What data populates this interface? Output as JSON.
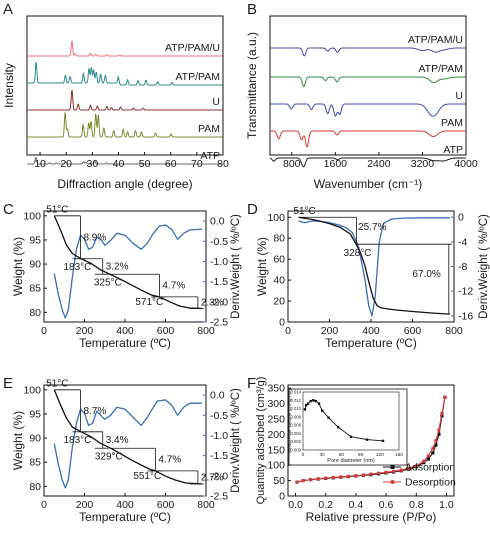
{
  "panels": {
    "A": "A",
    "B": "B",
    "C": "C",
    "D": "D",
    "E": "E",
    "F": "F"
  },
  "chart_data": [
    {
      "panel": "A",
      "type": "line",
      "xlabel": "Diffraction angle (degree)",
      "ylabel": "Intensity",
      "xlim": [
        5,
        80
      ],
      "xticks": [
        "10",
        "20",
        "30",
        "40",
        "50",
        "60",
        "70",
        "80"
      ],
      "series": [
        {
          "name": "ATP/PAM/U",
          "color": "#e8707f",
          "peaks": [
            {
              "x": 22.2,
              "h": 0.85
            },
            {
              "x": 23.5,
              "h": 0.12
            },
            {
              "x": 29.2,
              "h": 0.15
            },
            {
              "x": 31.3,
              "h": 0.1
            },
            {
              "x": 35.6,
              "h": 0.08
            },
            {
              "x": 40.5,
              "h": 0.06
            }
          ]
        },
        {
          "name": "ATP/PAM",
          "color": "#2a8a8a",
          "peaks": [
            {
              "x": 8.5,
              "h": 0.95
            },
            {
              "x": 19.7,
              "h": 0.35
            },
            {
              "x": 21.5,
              "h": 0.3
            },
            {
              "x": 26.6,
              "h": 0.45
            },
            {
              "x": 28.7,
              "h": 0.65
            },
            {
              "x": 29.6,
              "h": 0.7
            },
            {
              "x": 30.5,
              "h": 0.6
            },
            {
              "x": 31.5,
              "h": 0.5
            },
            {
              "x": 33.2,
              "h": 0.4
            },
            {
              "x": 35.0,
              "h": 0.35
            },
            {
              "x": 40.0,
              "h": 0.3
            },
            {
              "x": 43.5,
              "h": 0.25
            },
            {
              "x": 47.5,
              "h": 0.2
            },
            {
              "x": 50.5,
              "h": 0.22
            },
            {
              "x": 55.0,
              "h": 0.15
            },
            {
              "x": 60.5,
              "h": 0.12
            }
          ]
        },
        {
          "name": "U",
          "color": "#8b2f2f",
          "peaks": [
            {
              "x": 22.2,
              "h": 1.0
            },
            {
              "x": 24.6,
              "h": 0.3
            },
            {
              "x": 29.3,
              "h": 0.25
            },
            {
              "x": 31.9,
              "h": 0.2
            },
            {
              "x": 35.6,
              "h": 0.18
            },
            {
              "x": 37.3,
              "h": 0.12
            },
            {
              "x": 40.8,
              "h": 0.15
            },
            {
              "x": 45.7,
              "h": 0.1
            },
            {
              "x": 49.5,
              "h": 0.1
            }
          ]
        },
        {
          "name": "PAM",
          "color": "#7d8a2e",
          "peaks": [
            {
              "x": 19.6,
              "h": 0.95
            },
            {
              "x": 20.5,
              "h": 0.3
            },
            {
              "x": 26.5,
              "h": 0.5
            },
            {
              "x": 28.6,
              "h": 0.55
            },
            {
              "x": 29.5,
              "h": 0.6
            },
            {
              "x": 31.3,
              "h": 0.9
            },
            {
              "x": 32.3,
              "h": 0.85
            },
            {
              "x": 34.4,
              "h": 0.35
            },
            {
              "x": 38.2,
              "h": 0.25
            },
            {
              "x": 41.8,
              "h": 0.3
            },
            {
              "x": 43.5,
              "h": 0.2
            },
            {
              "x": 46.5,
              "h": 0.25
            },
            {
              "x": 48.8,
              "h": 0.2
            },
            {
              "x": 54.2,
              "h": 0.15
            },
            {
              "x": 60.1,
              "h": 0.12
            }
          ]
        },
        {
          "name": "ATP",
          "color": "#6e6e6e",
          "peaks": [
            {
              "x": 8.4,
              "h": 0.55
            },
            {
              "x": 13.7,
              "h": 0.1
            },
            {
              "x": 16.3,
              "h": 0.1
            },
            {
              "x": 19.8,
              "h": 0.18
            },
            {
              "x": 26.6,
              "h": 0.2
            },
            {
              "x": 27.6,
              "h": 0.15
            },
            {
              "x": 30.9,
              "h": 0.25
            },
            {
              "x": 35.4,
              "h": 0.1
            }
          ]
        }
      ]
    },
    {
      "panel": "B",
      "type": "line",
      "xlabel": "Wavenumber (cm⁻¹)",
      "ylabel": "Transmittance (a.u.)",
      "xlim": [
        400,
        4000
      ],
      "xticks": [
        "800",
        "1600",
        "2400",
        "3200",
        "4000"
      ],
      "series": [
        {
          "name": "ATP/PAM/U",
          "color": "#5b3fa0",
          "dips": [
            {
              "x": 1030,
              "d": 0.8
            },
            {
              "x": 1460,
              "d": 0.3
            },
            {
              "x": 1640,
              "d": 0.45
            },
            {
              "x": 3200,
              "d": 0.25
            },
            {
              "x": 3440,
              "d": 0.4
            },
            {
              "x": 3610,
              "d": 0.15
            }
          ]
        },
        {
          "name": "ATP/PAM",
          "color": "#2f8a3e",
          "dips": [
            {
              "x": 1020,
              "d": 0.8
            },
            {
              "x": 1420,
              "d": 0.3
            },
            {
              "x": 1630,
              "d": 0.4
            },
            {
              "x": 3410,
              "d": 0.45
            },
            {
              "x": 3610,
              "d": 0.15
            }
          ]
        },
        {
          "name": "U",
          "color": "#3d4fb0",
          "dips": [
            {
              "x": 790,
              "d": 0.35
            },
            {
              "x": 1160,
              "d": 0.4
            },
            {
              "x": 1460,
              "d": 0.7
            },
            {
              "x": 1600,
              "d": 0.85
            },
            {
              "x": 1680,
              "d": 0.75
            },
            {
              "x": 3340,
              "d": 0.5
            },
            {
              "x": 3440,
              "d": 0.6
            }
          ]
        },
        {
          "name": "PAM",
          "color": "#d63a3a",
          "dips": [
            {
              "x": 560,
              "d": 0.5
            },
            {
              "x": 980,
              "d": 0.55
            },
            {
              "x": 1080,
              "d": 1.0
            },
            {
              "x": 1630,
              "d": 0.25
            },
            {
              "x": 3400,
              "d": 0.35
            }
          ]
        },
        {
          "name": "ATP",
          "color": "#1a1a1a",
          "dips": [
            {
              "x": 470,
              "d": 0.4
            },
            {
              "x": 990,
              "d": 0.6
            },
            {
              "x": 1030,
              "d": 0.8
            },
            {
              "x": 1640,
              "d": 0.25
            },
            {
              "x": 3400,
              "d": 0.3
            },
            {
              "x": 3550,
              "d": 0.2
            },
            {
              "x": 3615,
              "d": 0.2
            }
          ]
        }
      ]
    },
    {
      "panel": "C",
      "type": "line",
      "xlabel": "Temperature (ºC)",
      "ylabel": "Weight (%)",
      "y2label": "Deriv.Weight ( %/ºC)",
      "xlim": [
        0,
        800
      ],
      "ylim": [
        78,
        101
      ],
      "y2lim": [
        -2.5,
        0.25
      ],
      "xticks": [
        "0",
        "200",
        "400",
        "600",
        "800"
      ],
      "yticks": [
        "80",
        "85",
        "90",
        "95",
        "100"
      ],
      "y2ticks": [
        "0.0",
        "-0.5",
        "-1.0",
        "-1.5",
        "-2.0",
        "-2.5"
      ],
      "series": [
        {
          "name": "Weight",
          "color": "#111111",
          "x": [
            51,
            80,
            110,
            140,
            183,
            230,
            280,
            325,
            380,
            430,
            480,
            530,
            571,
            620,
            670,
            720,
            780
          ],
          "y": [
            100,
            97.2,
            94.0,
            92.2,
            91.1,
            90.2,
            88.8,
            87.9,
            86.8,
            85.7,
            84.6,
            83.6,
            83.2,
            82.2,
            81.3,
            80.9,
            80.8
          ]
        },
        {
          "name": "Deriv.Weight",
          "color": "#3a6fb5",
          "axis": "y2",
          "x": [
            51,
            70,
            90,
            105,
            120,
            140,
            160,
            180,
            200,
            220,
            240,
            260,
            280,
            300,
            325,
            360,
            400,
            440,
            480,
            510,
            540,
            571,
            600,
            630,
            660,
            690,
            720,
            780
          ],
          "y": [
            -1.3,
            -1.8,
            -2.2,
            -2.4,
            -2.2,
            -1.4,
            -0.7,
            -0.35,
            -0.45,
            -0.7,
            -0.65,
            -0.4,
            -0.45,
            -0.6,
            -0.5,
            -0.3,
            -0.35,
            -0.55,
            -0.7,
            -0.55,
            -0.3,
            -0.12,
            -0.1,
            -0.2,
            -0.45,
            -0.3,
            -0.22,
            -0.2
          ]
        }
      ],
      "annotations": [
        "51°C",
        "8.9%",
        "183°C",
        "3.2%",
        "325°C",
        "4.7%",
        "571°C",
        "2.3%"
      ]
    },
    {
      "panel": "D",
      "type": "line",
      "xlabel": "Temperature (ºC)",
      "ylabel": "Weight (%)",
      "y2label": "Deriv.Weight ( %/ºC)",
      "xlim": [
        0,
        800
      ],
      "ylim": [
        0,
        106
      ],
      "y2lim": [
        -17,
        1
      ],
      "xticks": [
        "0",
        "200",
        "400",
        "600",
        "800"
      ],
      "yticks": [
        "0",
        "20",
        "40",
        "60",
        "80",
        "100"
      ],
      "y2ticks": [
        "0",
        "-4",
        "-8",
        "-12",
        "-16"
      ],
      "series": [
        {
          "name": "Weight",
          "color": "#111111",
          "x": [
            51,
            100,
            150,
            200,
            250,
            300,
            328,
            350,
            370,
            390,
            410,
            430,
            450,
            480,
            520,
            600,
            700,
            780
          ],
          "y": [
            100,
            98.5,
            96.5,
            94.0,
            90.5,
            84.0,
            74.3,
            66.0,
            54.0,
            38.0,
            23.0,
            15.5,
            13.5,
            12.5,
            11.5,
            10.0,
            8.5,
            7.5
          ]
        },
        {
          "name": "Deriv.Weight",
          "color": "#3a6fb5",
          "axis": "y2",
          "x": [
            51,
            80,
            120,
            160,
            200,
            240,
            280,
            310,
            340,
            370,
            390,
            405,
            420,
            440,
            460,
            500,
            560,
            650,
            780
          ],
          "y": [
            -0.6,
            -0.9,
            -0.6,
            -0.7,
            -0.9,
            -1.2,
            -1.7,
            -2.5,
            -4.8,
            -10.0,
            -14.5,
            -16.0,
            -13.0,
            -4.0,
            -1.0,
            -0.3,
            -0.15,
            -0.1,
            -0.1
          ]
        }
      ],
      "annotations": [
        "51°C",
        "25.7%",
        "328°C",
        "67.0%"
      ]
    },
    {
      "panel": "E",
      "type": "line",
      "xlabel": "Temperature (ºC)",
      "ylabel": "Weight (%)",
      "y2label": "Deriv.Weight ( %/ºC)",
      "xlim": [
        0,
        800
      ],
      "ylim": [
        78,
        101
      ],
      "y2lim": [
        -2.5,
        0.25
      ],
      "xticks": [
        "0",
        "200",
        "400",
        "600",
        "800"
      ],
      "yticks": [
        "80",
        "85",
        "90",
        "95",
        "100"
      ],
      "y2ticks": [
        "0.0",
        "-0.5",
        "-1.0",
        "-1.5",
        "-2.0",
        "-2.5"
      ],
      "series": [
        {
          "name": "Weight",
          "color": "#111111",
          "x": [
            51,
            80,
            110,
            140,
            183,
            230,
            280,
            329,
            380,
            430,
            480,
            520,
            551,
            600,
            650,
            700,
            780
          ],
          "y": [
            100,
            97.0,
            94.2,
            92.3,
            91.3,
            90.3,
            88.9,
            87.9,
            86.7,
            85.5,
            84.4,
            83.6,
            83.2,
            82.1,
            81.3,
            80.7,
            80.5
          ]
        },
        {
          "name": "Deriv.Weight",
          "color": "#3a6fb5",
          "axis": "y2",
          "x": [
            51,
            70,
            90,
            105,
            120,
            140,
            160,
            180,
            200,
            220,
            240,
            260,
            280,
            300,
            329,
            360,
            400,
            440,
            480,
            510,
            540,
            560,
            600,
            630,
            660,
            690,
            720,
            780
          ],
          "y": [
            -1.2,
            -1.7,
            -2.1,
            -2.3,
            -2.1,
            -1.3,
            -0.7,
            -0.35,
            -0.45,
            -0.75,
            -0.7,
            -0.4,
            -0.5,
            -0.6,
            -0.5,
            -0.3,
            -0.35,
            -0.55,
            -0.75,
            -0.55,
            -0.3,
            -0.15,
            -0.12,
            -0.25,
            -0.5,
            -0.3,
            -0.2,
            -0.2
          ]
        }
      ],
      "annotations": [
        "51°C",
        "8.7%",
        "183°C",
        "3.4%",
        "329°C",
        "4.7%",
        "551°C",
        "2.7%"
      ]
    },
    {
      "panel": "F",
      "type": "line",
      "xlabel": "Relative pressure (P/Po)",
      "ylabel": "Quantity adsorbed (cm³/g)",
      "xlim": [
        -0.05,
        1.05
      ],
      "ylim": [
        0,
        360
      ],
      "xticks": [
        "0.0",
        "0.2",
        "0.4",
        "0.6",
        "0.8",
        "1.0"
      ],
      "yticks": [
        "0",
        "50",
        "100",
        "150",
        "200",
        "250",
        "300",
        "350"
      ],
      "legend": "bottom-right",
      "series": [
        {
          "name": "Adsorption",
          "color": "#111111",
          "x": [
            0.01,
            0.05,
            0.1,
            0.15,
            0.2,
            0.25,
            0.3,
            0.35,
            0.4,
            0.45,
            0.5,
            0.55,
            0.6,
            0.65,
            0.7,
            0.75,
            0.8,
            0.85,
            0.88,
            0.91,
            0.93,
            0.95,
            0.97,
            0.99
          ],
          "y": [
            45,
            50,
            53,
            55,
            57,
            59,
            61,
            63,
            65,
            67,
            69,
            72,
            75,
            78,
            82,
            87,
            95,
            108,
            120,
            140,
            165,
            200,
            260,
            320
          ]
        },
        {
          "name": "Desorption",
          "color": "#d93a3a",
          "x": [
            0.99,
            0.97,
            0.95,
            0.93,
            0.91,
            0.88,
            0.85,
            0.8,
            0.75,
            0.7,
            0.65,
            0.6,
            0.55,
            0.5,
            0.45,
            0.4,
            0.35,
            0.3,
            0.25,
            0.2,
            0.15,
            0.1,
            0.05,
            0.01
          ],
          "y": [
            320,
            268,
            215,
            180,
            155,
            130,
            113,
            98,
            90,
            84,
            80,
            77,
            74,
            71,
            68,
            66,
            64,
            62,
            60,
            58,
            56,
            53,
            50,
            45
          ]
        }
      ],
      "inset": {
        "type": "line",
        "xlabel": "Pore diameter (nm)",
        "ylabel": "dV/dD Pore Volume (cm³/g·nm)",
        "xticks": [
          "0",
          "30",
          "60",
          "90",
          "120",
          "150"
        ],
        "yticks": [
          "0.000",
          "0.002",
          "0.004",
          "0.006",
          "0.008",
          "0.010",
          "0.012",
          "0.014"
        ],
        "xlim": [
          0,
          150
        ],
        "ylim": [
          0,
          0.014
        ],
        "x": [
          3,
          5,
          8,
          12,
          16,
          20,
          25,
          30,
          40,
          55,
          75,
          100,
          125
        ],
        "y": [
          0.0098,
          0.0108,
          0.0112,
          0.0118,
          0.012,
          0.0118,
          0.0112,
          0.0095,
          0.0078,
          0.0055,
          0.0032,
          0.0025,
          0.0022
        ]
      }
    }
  ]
}
